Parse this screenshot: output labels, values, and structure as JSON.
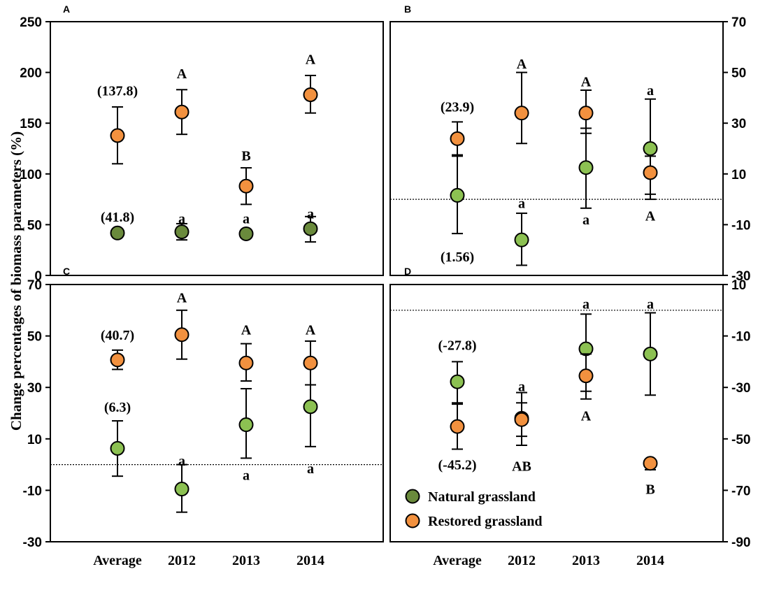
{
  "figure": {
    "ylabel": "Change percentages of biomass parameters (%)",
    "categories": [
      "Average",
      "2012",
      "2013",
      "2014"
    ],
    "legend": [
      {
        "name": "Natural grassland",
        "color": "#6a8a3c"
      },
      {
        "name": "Restored grassland",
        "color": "#f2913f"
      }
    ],
    "colors": {
      "natural_dark": "#6a8a3c",
      "natural_light": "#8cc152",
      "restored": "#f2913f",
      "frame": "#000000"
    }
  },
  "chart_data": [
    {
      "type": "scatter",
      "panel": "A",
      "ylim": [
        0,
        250
      ],
      "yticks": [
        0,
        50,
        100,
        150,
        200,
        250
      ],
      "axis_side": "left",
      "zero_line": false,
      "natural_style": "dark",
      "categories": [
        "Average",
        "2012",
        "2013",
        "2014"
      ],
      "series": [
        {
          "name": "Natural grassland",
          "values": [
            41.8,
            43,
            41,
            46
          ],
          "err_low": [
            null,
            35,
            null,
            33
          ],
          "err_high": [
            null,
            51,
            null,
            58
          ]
        },
        {
          "name": "Restored grassland",
          "values": [
            137.8,
            161,
            88,
            178
          ],
          "err_low": [
            110,
            139,
            70,
            160
          ],
          "err_high": [
            166,
            183,
            106,
            197
          ]
        }
      ],
      "annotations": [
        {
          "text": "(137.8)",
          "x": "Average",
          "y": 182
        },
        {
          "text": "(41.8)",
          "x": "Average",
          "y": 58
        },
        {
          "text": "A",
          "x": "2012",
          "y": 199
        },
        {
          "text": "a",
          "x": "2012",
          "y": 56
        },
        {
          "text": "B",
          "x": "2013",
          "y": 118
        },
        {
          "text": "a",
          "x": "2013",
          "y": 56
        },
        {
          "text": "A",
          "x": "2014",
          "y": 213
        },
        {
          "text": "a",
          "x": "2014",
          "y": 61
        }
      ]
    },
    {
      "type": "scatter",
      "panel": "B",
      "ylim": [
        -30,
        70
      ],
      "yticks": [
        -30,
        -10,
        10,
        30,
        50,
        70
      ],
      "axis_side": "right",
      "zero_line": true,
      "natural_style": "light",
      "categories": [
        "Average",
        "2012",
        "2013",
        "2014"
      ],
      "series": [
        {
          "name": "Natural grassland",
          "values": [
            1.56,
            -16,
            12.5,
            20
          ],
          "err_low": [
            -13.5,
            -26,
            -3.5,
            0
          ],
          "err_high": [
            17.5,
            -5.5,
            28,
            39.5
          ]
        },
        {
          "name": "Restored grassland",
          "values": [
            23.9,
            34,
            34,
            10.5
          ],
          "err_low": [
            17,
            22,
            26,
            2
          ],
          "err_high": [
            30.5,
            50,
            43,
            17
          ]
        }
      ],
      "annotations": [
        {
          "text": "(23.9)",
          "x": "Average",
          "y": 36.5
        },
        {
          "text": "(1.56)",
          "x": "Average",
          "y": -22.5
        },
        {
          "text": "A",
          "x": "2012",
          "y": 53.5
        },
        {
          "text": "a",
          "x": "2012",
          "y": -1.5
        },
        {
          "text": "A",
          "x": "2013",
          "y": 46.5
        },
        {
          "text": "a",
          "x": "2013",
          "y": -8
        },
        {
          "text": "a",
          "x": "2014",
          "y": 43
        },
        {
          "text": "A",
          "x": "2014",
          "y": -6.5
        }
      ]
    },
    {
      "type": "scatter",
      "panel": "C",
      "ylim": [
        -30,
        70
      ],
      "yticks": [
        -30,
        -10,
        10,
        30,
        50,
        70
      ],
      "axis_side": "left",
      "zero_line": true,
      "natural_style": "light",
      "categories": [
        "Average",
        "2012",
        "2013",
        "2014"
      ],
      "series": [
        {
          "name": "Natural grassland",
          "values": [
            6.3,
            -9.5,
            15.5,
            22.5
          ],
          "err_low": [
            -4.5,
            -18.5,
            2.5,
            7
          ],
          "err_high": [
            17,
            0,
            29.5,
            31
          ]
        },
        {
          "name": "Restored grassland",
          "values": [
            40.7,
            50.5,
            39.5,
            39.5
          ],
          "err_low": [
            37,
            41,
            32.5,
            31
          ],
          "err_high": [
            44.5,
            60,
            47,
            48
          ]
        }
      ],
      "annotations": [
        {
          "text": "(40.7)",
          "x": "Average",
          "y": 50.5
        },
        {
          "text": "(6.3)",
          "x": "Average",
          "y": 22.5
        },
        {
          "text": "A",
          "x": "2012",
          "y": 65
        },
        {
          "text": "a",
          "x": "2012",
          "y": 1.5
        },
        {
          "text": "A",
          "x": "2013",
          "y": 52.5
        },
        {
          "text": "a",
          "x": "2013",
          "y": -4
        },
        {
          "text": "A",
          "x": "2014",
          "y": 52.5
        },
        {
          "text": "a",
          "x": "2014",
          "y": -1.5
        }
      ]
    },
    {
      "type": "scatter",
      "panel": "D",
      "ylim": [
        -90,
        10
      ],
      "yticks": [
        -90,
        -70,
        -50,
        -30,
        -10,
        10
      ],
      "axis_side": "right",
      "zero_line": true,
      "natural_style": "light",
      "categories": [
        "Average",
        "2012",
        "2013",
        "2014"
      ],
      "series": [
        {
          "name": "Natural grassland",
          "values": [
            -27.8,
            -42,
            -15,
            -17
          ],
          "err_low": [
            -36,
            -52.5,
            -31.5,
            -33
          ],
          "err_high": [
            -20,
            -32,
            -1.5,
            -1
          ]
        },
        {
          "name": "Restored grassland",
          "values": [
            -45.2,
            -42.5,
            -25.5,
            -59.5
          ],
          "err_low": [
            -54,
            -49,
            -34.5,
            -62
          ],
          "err_high": [
            -36.5,
            -36,
            -17,
            -58
          ]
        }
      ],
      "annotations": [
        {
          "text": "(-27.8)",
          "x": "Average",
          "y": -13.5
        },
        {
          "text": "(-45.2)",
          "x": "Average",
          "y": -60
        },
        {
          "text": "a",
          "x": "2012",
          "y": -29.5
        },
        {
          "text": "AB",
          "x": "2012",
          "y": -60.5
        },
        {
          "text": "a",
          "x": "2013",
          "y": 2.5
        },
        {
          "text": "A",
          "x": "2013",
          "y": -41
        },
        {
          "text": "a",
          "x": "2014",
          "y": 2.5
        },
        {
          "text": "B",
          "x": "2014",
          "y": -69.5
        }
      ],
      "has_legend": true
    }
  ]
}
